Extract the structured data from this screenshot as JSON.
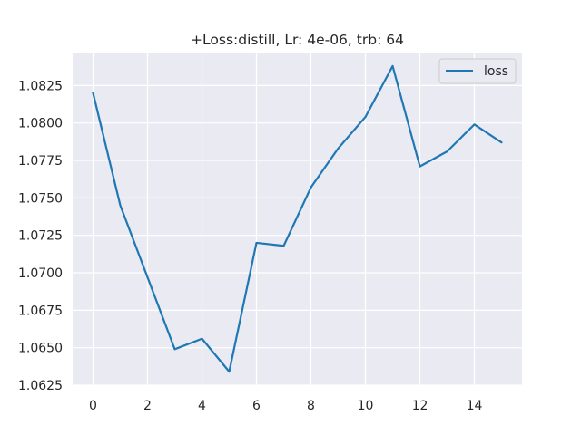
{
  "chart_data": {
    "type": "line",
    "title": "+Loss:distill, Lr: 4e-06, trb: 64",
    "xlabel": "",
    "ylabel": "",
    "x": [
      0,
      1,
      2,
      3,
      4,
      5,
      6,
      7,
      8,
      9,
      10,
      11,
      12,
      13,
      14,
      15
    ],
    "series": [
      {
        "name": "loss",
        "color": "#1f77b4",
        "values": [
          1.082,
          1.0745,
          1.0697,
          1.0649,
          1.0656,
          1.0634,
          1.072,
          1.0718,
          1.0757,
          1.0783,
          1.0804,
          1.0838,
          1.0771,
          1.0781,
          1.0799,
          1.0787
        ]
      }
    ],
    "xlim": [
      -0.75,
      15.75
    ],
    "ylim": [
      1.0625,
      1.0847
    ],
    "xticks": [
      0,
      2,
      4,
      6,
      8,
      10,
      12,
      14
    ],
    "xtick_labels": [
      "0",
      "2",
      "4",
      "6",
      "8",
      "10",
      "12",
      "14"
    ],
    "yticks": [
      1.0625,
      1.065,
      1.0675,
      1.07,
      1.0725,
      1.075,
      1.0775,
      1.08,
      1.0825
    ],
    "ytick_labels": [
      "1.0625",
      "1.0650",
      "1.0675",
      "1.0700",
      "1.0725",
      "1.0750",
      "1.0775",
      "1.0800",
      "1.0825"
    ],
    "grid": true,
    "legend_position": "top-right",
    "background_color": "#eaeaf2",
    "grid_color": "#ffffff"
  }
}
